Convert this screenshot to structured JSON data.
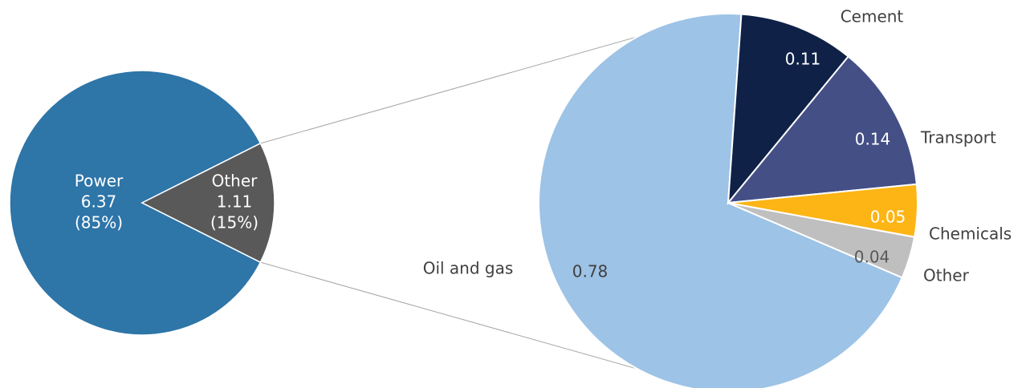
{
  "chart_data": [
    {
      "type": "pie",
      "slices": [
        {
          "name": "Power",
          "value": 6.37,
          "percent_label": "(85%)",
          "value_label": "6.37",
          "color": "#2E75A8"
        },
        {
          "name": "Other",
          "value": 1.11,
          "percent_label": "(15%)",
          "value_label": "1.11",
          "color": "#595959"
        }
      ]
    },
    {
      "type": "pie",
      "slices": [
        {
          "name": "Oil and gas",
          "value": 0.78,
          "value_label": "0.78",
          "color": "#9DC3E6"
        },
        {
          "name": "Cement",
          "value": 0.11,
          "value_label": "0.11",
          "color": "#0F2147"
        },
        {
          "name": "Transport",
          "value": 0.14,
          "value_label": "0.14",
          "color": "#444F86"
        },
        {
          "name": "Chemicals",
          "value": 0.05,
          "value_label": "0.05",
          "color": "#FDB515"
        },
        {
          "name": "Other",
          "value": 0.04,
          "value_label": "0.04",
          "color": "#BFBFBF"
        }
      ]
    }
  ],
  "label_colors": {
    "inside_light": "#ffffff",
    "inside_dark": "#595959",
    "outside": "#404040",
    "connector": "#A6A6A6",
    "slice_border": "#ffffff"
  }
}
